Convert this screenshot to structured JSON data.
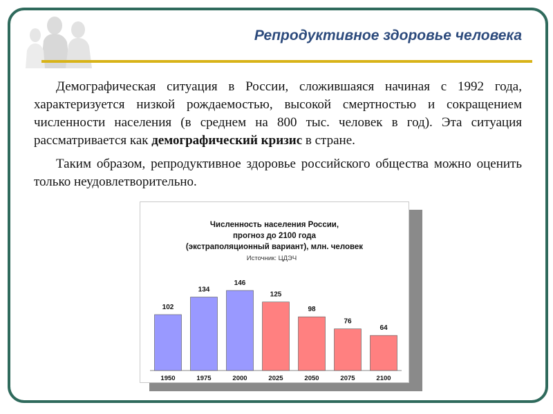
{
  "slide": {
    "title": "Репродуктивное здоровье человека",
    "paragraph1_before": "Демографическая ситуация в России, сложившаяся начиная с 1992 года, характеризуется низкой рождаемостью, высокой смертностью и сокращением численности населения (в среднем на 800 тыс. человек в год). Эта ситуация рассматривается как ",
    "paragraph1_bold": "демографический кризис",
    "paragraph1_after": " в стране.",
    "paragraph2": "Таким образом, репродуктивное здоровье российского общества можно оценить только неудовлетворительно."
  },
  "colors": {
    "frame": "#2f6a5c",
    "title": "#2c4a7c",
    "rule": "#d8b318",
    "bar_actual": "#9999ff",
    "bar_forecast": "#ff8080"
  },
  "chart_data": {
    "type": "bar",
    "title_lines": [
      "Численность населения России,",
      "прогноз до 2100 года",
      "(экстраполяционный вариант), млн. человек"
    ],
    "source": "Источник: ЦДЭЧ",
    "categories": [
      "1950",
      "1975",
      "2000",
      "2025",
      "2050",
      "2075",
      "2100"
    ],
    "values": [
      102,
      134,
      146,
      125,
      98,
      76,
      64
    ],
    "bar_colors": [
      "#9999ff",
      "#9999ff",
      "#9999ff",
      "#ff8080",
      "#ff8080",
      "#ff8080",
      "#ff8080"
    ],
    "ylim": [
      0,
      146
    ],
    "grid": false,
    "legend": "none"
  }
}
